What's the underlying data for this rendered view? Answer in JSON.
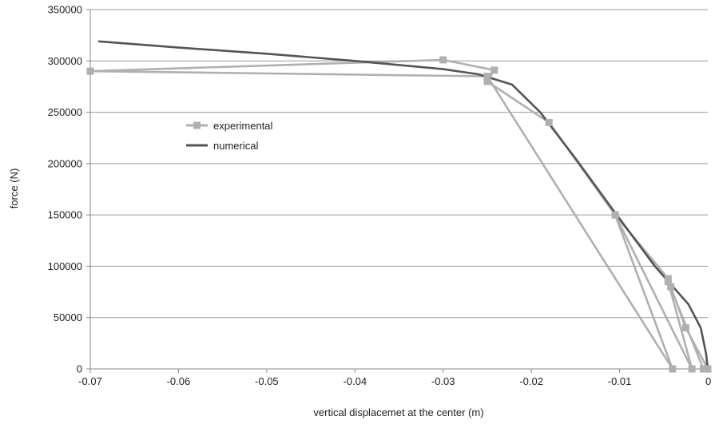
{
  "chart_data": {
    "type": "line",
    "xlabel": "vertical displacemet at the center (m)",
    "ylabel": "force (N)",
    "xlim": [
      -0.07,
      0
    ],
    "ylim": [
      0,
      350000
    ],
    "x_ticks": [
      -0.07,
      -0.06,
      -0.05,
      -0.04,
      -0.03,
      -0.02,
      -0.01,
      0
    ],
    "x_tick_labels": [
      "-0.07",
      "-0.06",
      "-0.05",
      "-0.04",
      "-0.03",
      "-0.02",
      "-0.01",
      "0"
    ],
    "y_ticks": [
      0,
      50000,
      100000,
      150000,
      200000,
      250000,
      300000,
      350000
    ],
    "y_tick_labels": [
      "0",
      "50000",
      "100000",
      "150000",
      "200000",
      "250000",
      "300000",
      "350000"
    ],
    "grid": "horizontal",
    "legend_position": "upper-left inside",
    "series": [
      {
        "name": "experimental",
        "color": "#b0b0b0",
        "marker": "square",
        "points": [
          [
            0,
            0
          ],
          [
            -0.0025,
            40000
          ],
          [
            -0.0042,
            80000
          ],
          [
            -0.0045,
            88000
          ],
          [
            -0.0105,
            150000
          ],
          [
            -0.018,
            240000
          ],
          [
            -0.025,
            280000
          ],
          [
            -0.0242,
            291000
          ],
          [
            -0.03,
            301000
          ],
          [
            -0.07,
            290000
          ],
          [
            -0.025,
            285000
          ],
          [
            -0.004,
            0
          ],
          [
            -0.0105,
            150000
          ],
          [
            -0.0018,
            0
          ],
          [
            -0.0045,
            85000
          ],
          [
            -0.0005,
            0
          ]
        ]
      },
      {
        "name": "numerical",
        "color": "#555555",
        "marker": "none",
        "points": [
          [
            0,
            0
          ],
          [
            -0.0002,
            15000
          ],
          [
            -0.0008,
            40000
          ],
          [
            -0.0022,
            63000
          ],
          [
            -0.006,
            100000
          ],
          [
            -0.0105,
            152000
          ],
          [
            -0.015,
            205000
          ],
          [
            -0.019,
            250000
          ],
          [
            -0.0222,
            277000
          ],
          [
            -0.026,
            287000
          ],
          [
            -0.03,
            292000
          ],
          [
            -0.04,
            300000
          ],
          [
            -0.05,
            307000
          ],
          [
            -0.06,
            313000
          ],
          [
            -0.069,
            319000
          ]
        ]
      }
    ]
  }
}
